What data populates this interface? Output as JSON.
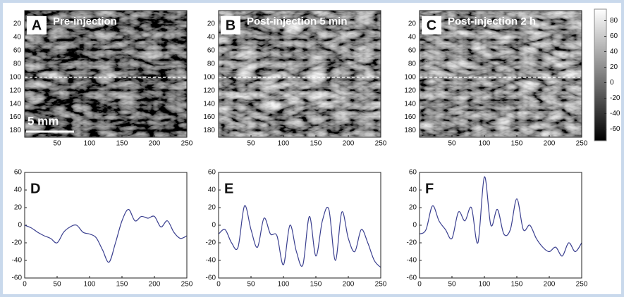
{
  "chart_data": [
    {
      "type": "image",
      "label": "A",
      "title": "Pre-injection",
      "annotation": "5 mm",
      "cut_row": 100,
      "xlim": [
        0,
        250
      ],
      "ylim": [
        0,
        190
      ],
      "xticks": [
        50,
        100,
        150,
        200,
        250
      ],
      "yticks": [
        20,
        40,
        60,
        80,
        100,
        120,
        140,
        160,
        180
      ]
    },
    {
      "type": "image",
      "label": "B",
      "title": "Post-injection 5 min",
      "cut_row": 100,
      "xlim": [
        0,
        250
      ],
      "ylim": [
        0,
        190
      ],
      "xticks": [
        50,
        100,
        150,
        200,
        250
      ],
      "yticks": [
        20,
        40,
        60,
        80,
        100,
        120,
        140,
        160,
        180
      ]
    },
    {
      "type": "image",
      "label": "C",
      "title": "Post-injection 2 h",
      "cut_row": 100,
      "xlim": [
        0,
        250
      ],
      "ylim": [
        0,
        190
      ],
      "xticks": [
        50,
        100,
        150,
        200,
        250
      ],
      "yticks": [
        20,
        40,
        60,
        80,
        100,
        120,
        140,
        160,
        180
      ],
      "colorbar": {
        "lim": [
          -75,
          95
        ],
        "ticks": [
          80,
          60,
          40,
          20,
          0,
          -20,
          -40,
          -60
        ]
      }
    },
    {
      "type": "line",
      "label": "D",
      "color": "#3a3f8f",
      "x": [
        0,
        10,
        20,
        30,
        40,
        50,
        60,
        70,
        80,
        90,
        100,
        110,
        120,
        130,
        140,
        150,
        160,
        170,
        180,
        190,
        200,
        210,
        220,
        230,
        240,
        250
      ],
      "values": [
        0,
        -3,
        -8,
        -12,
        -15,
        -20,
        -8,
        -2,
        0,
        -8,
        -10,
        -14,
        -28,
        -42,
        -20,
        5,
        18,
        5,
        10,
        8,
        10,
        -2,
        5,
        -8,
        -15,
        -12
      ],
      "xlim": [
        0,
        250
      ],
      "ylim": [
        -60,
        60
      ],
      "xticks": [
        0,
        50,
        100,
        150,
        200,
        250
      ],
      "yticks": [
        -60,
        -40,
        -20,
        0,
        20,
        40,
        60
      ]
    },
    {
      "type": "line",
      "label": "E",
      "color": "#3a3f8f",
      "x": [
        0,
        10,
        20,
        30,
        40,
        50,
        60,
        70,
        80,
        90,
        100,
        110,
        120,
        130,
        140,
        150,
        160,
        170,
        180,
        190,
        200,
        210,
        220,
        230,
        240,
        250
      ],
      "values": [
        -10,
        -5,
        -20,
        -25,
        22,
        -5,
        -25,
        8,
        -10,
        -12,
        -45,
        0,
        -30,
        -45,
        10,
        -35,
        5,
        18,
        -40,
        15,
        -15,
        -30,
        -5,
        -20,
        -40,
        -48
      ],
      "xlim": [
        0,
        250
      ],
      "ylim": [
        -60,
        60
      ],
      "xticks": [
        0,
        50,
        100,
        150,
        200,
        250
      ],
      "yticks": [
        -60,
        -40,
        -20,
        0,
        20,
        40,
        60
      ]
    },
    {
      "type": "line",
      "label": "F",
      "color": "#3a3f8f",
      "x": [
        0,
        10,
        20,
        30,
        40,
        50,
        60,
        70,
        80,
        90,
        100,
        110,
        120,
        130,
        140,
        150,
        160,
        170,
        180,
        190,
        200,
        210,
        220,
        230,
        240,
        250
      ],
      "values": [
        -10,
        -5,
        22,
        5,
        -5,
        -15,
        15,
        5,
        20,
        -20,
        55,
        0,
        18,
        -10,
        -5,
        30,
        -5,
        0,
        -15,
        -25,
        -30,
        -25,
        -35,
        -20,
        -30,
        -20
      ],
      "xlim": [
        0,
        250
      ],
      "ylim": [
        -60,
        60
      ],
      "xticks": [
        0,
        50,
        100,
        150,
        200,
        250
      ],
      "yticks": [
        -60,
        -40,
        -20,
        0,
        20,
        40,
        60
      ]
    }
  ]
}
